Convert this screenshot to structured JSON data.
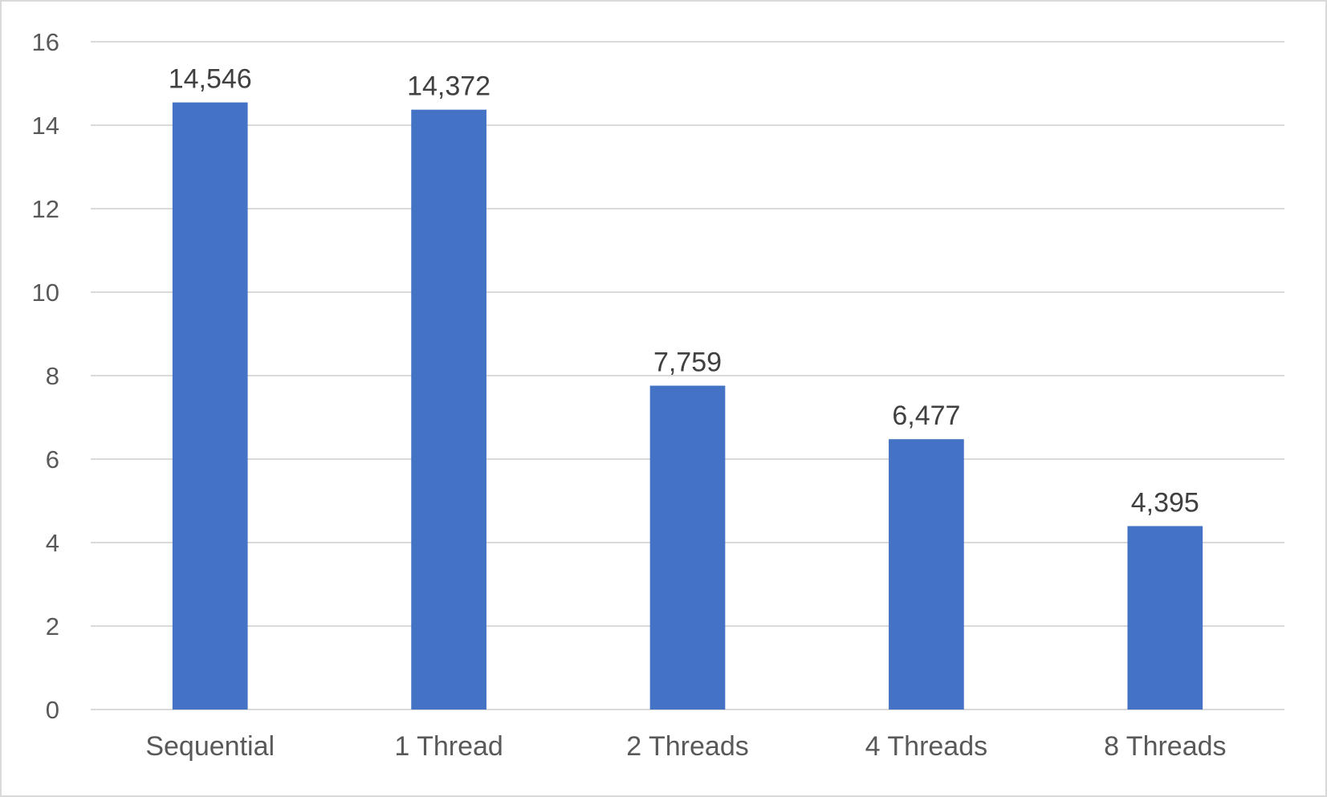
{
  "chart_data": {
    "type": "bar",
    "title": "",
    "xlabel": "",
    "ylabel": "",
    "ylim": [
      0,
      16
    ],
    "yticks": [
      0,
      2,
      4,
      6,
      8,
      10,
      12,
      14,
      16
    ],
    "grid": true,
    "legend": "none",
    "bar_color": "#4472c4",
    "categories": [
      "Sequential",
      "1 Thread",
      "2 Threads",
      "4 Threads",
      "8 Threads"
    ],
    "values": [
      14.546,
      14.372,
      7.759,
      6.477,
      4.395
    ],
    "data_labels": [
      "14,546",
      "14,372",
      "7,759",
      "6,477",
      "4,395"
    ]
  }
}
